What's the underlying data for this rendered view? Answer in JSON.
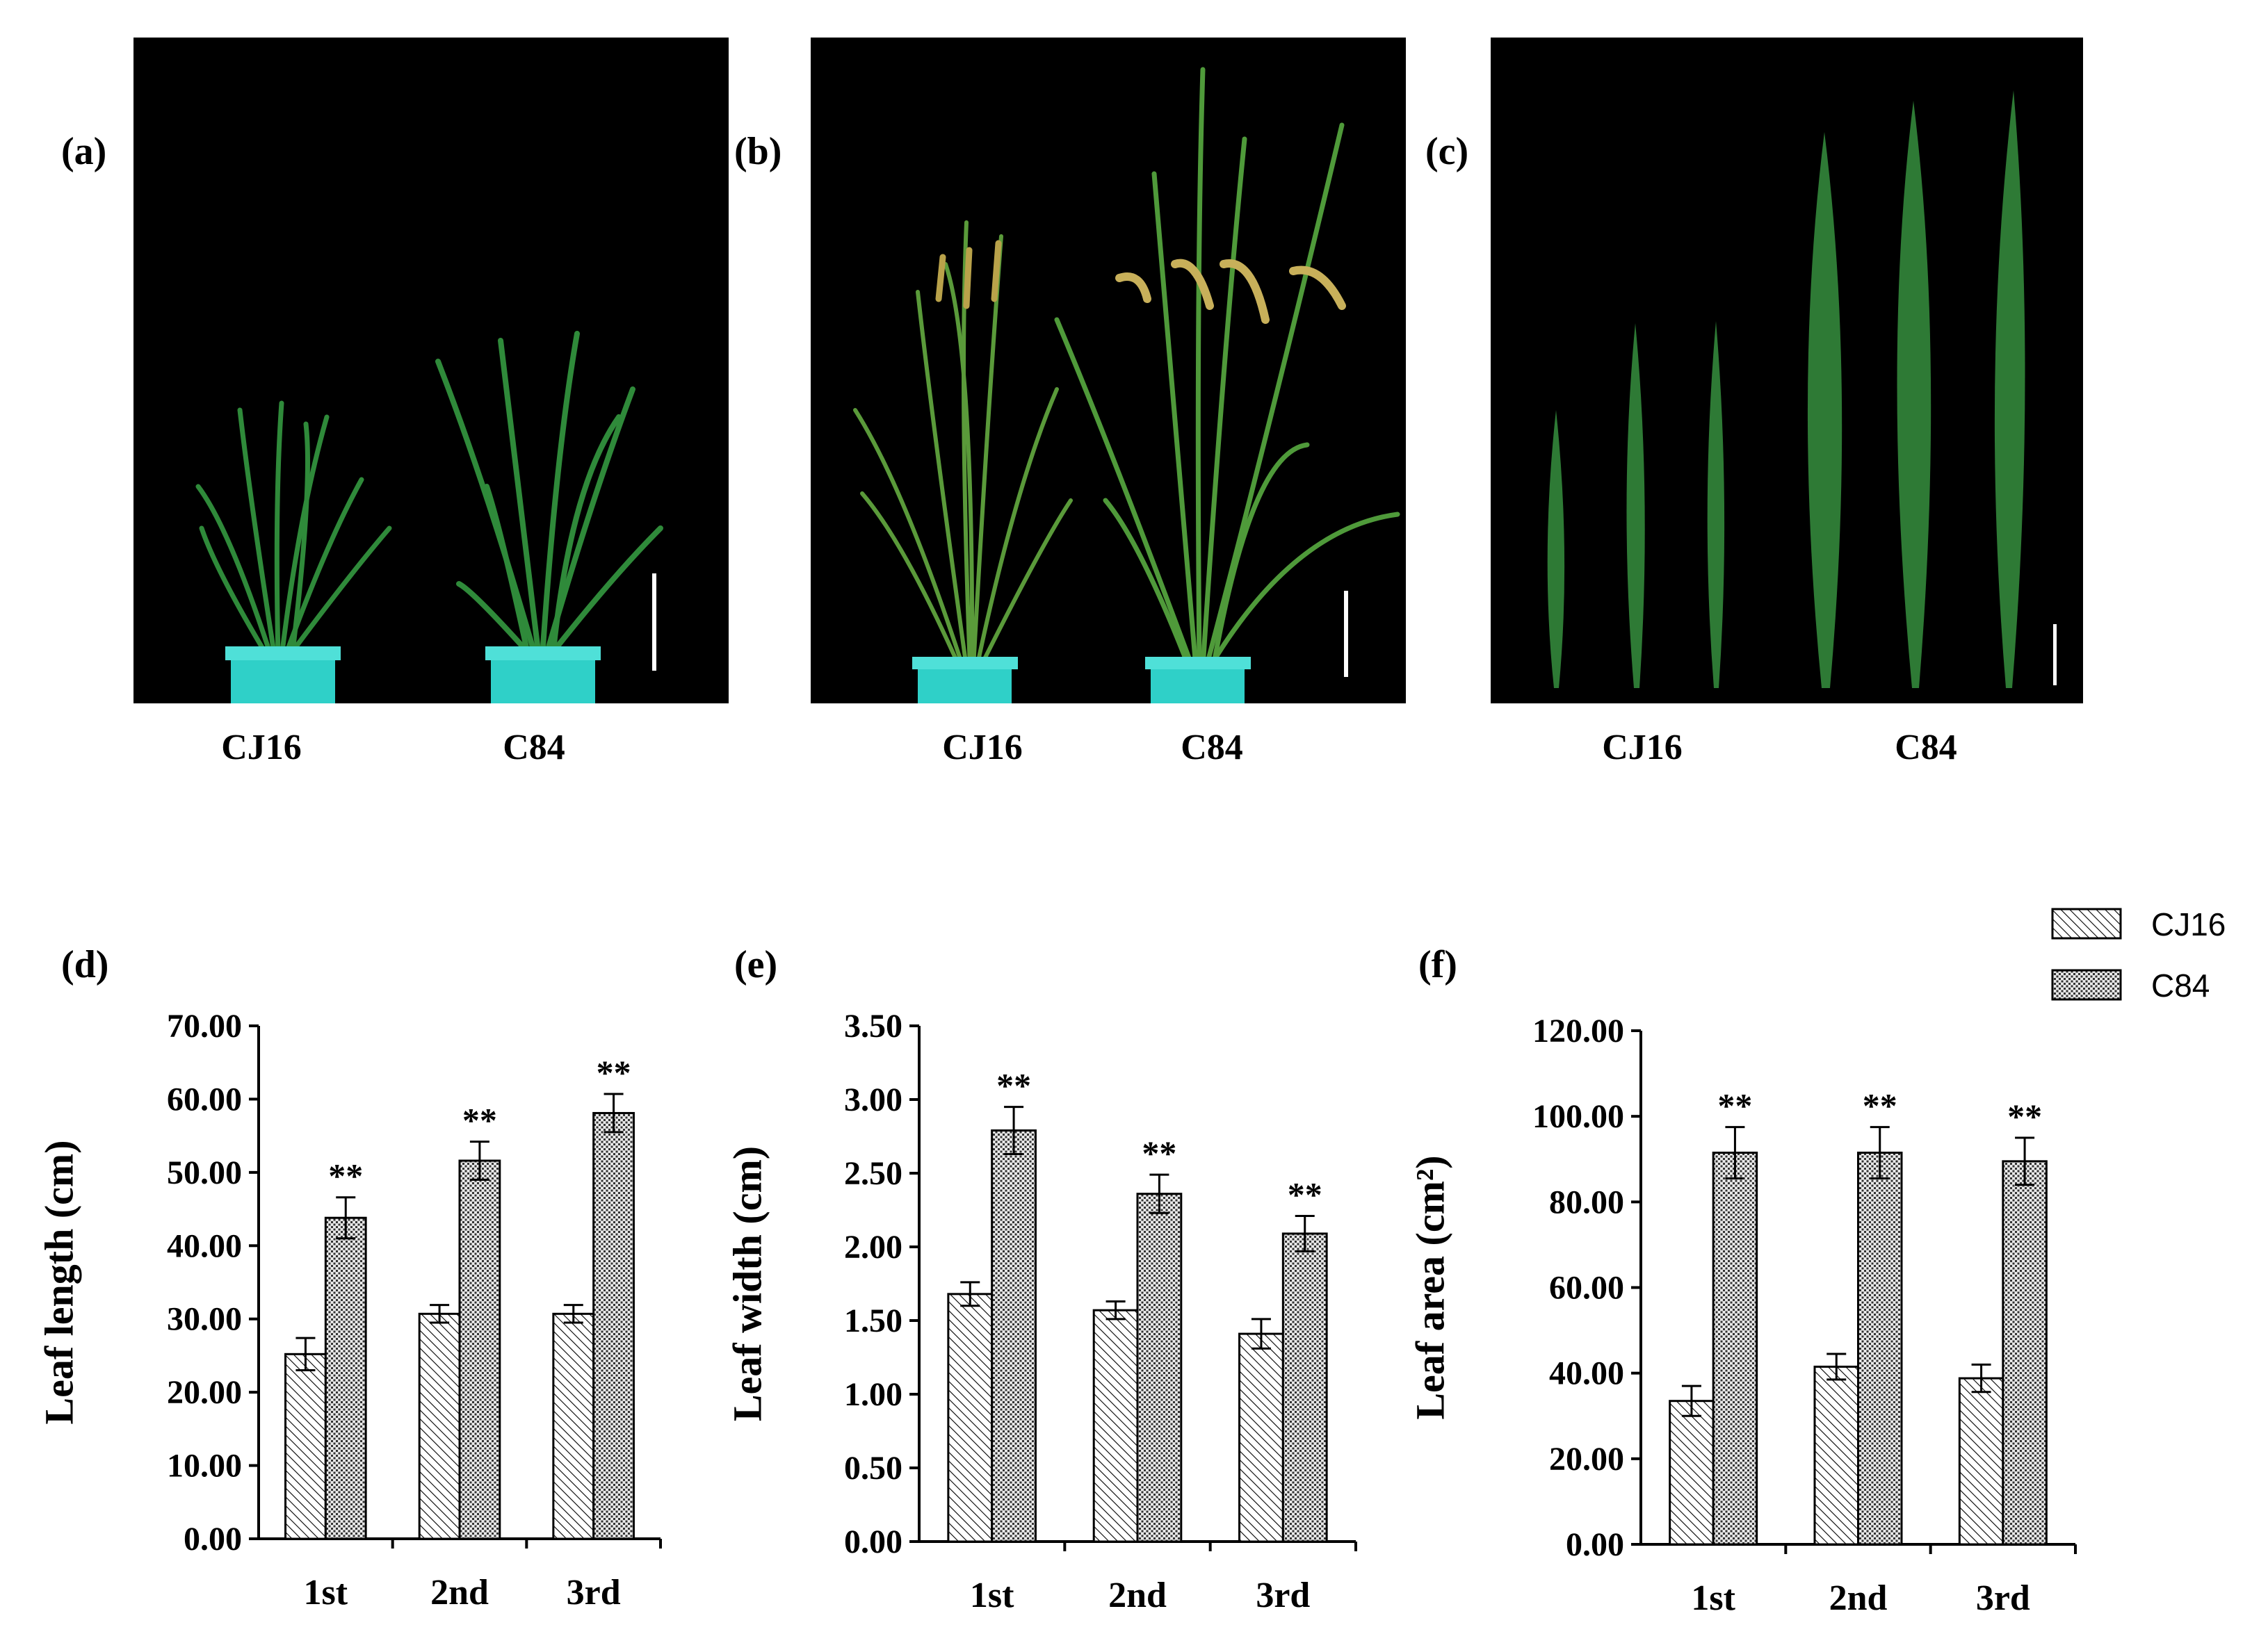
{
  "photos": [
    {
      "label": "(a)",
      "captions": [
        "CJ16",
        "C84"
      ],
      "subject": "seedling-stage plants"
    },
    {
      "label": "(b)",
      "captions": [
        "CJ16",
        "C84"
      ],
      "subject": "heading-stage plants"
    },
    {
      "label": "(c)",
      "captions": [
        "CJ16",
        "C84"
      ],
      "subject": "flag leaves"
    }
  ],
  "legend": {
    "items": [
      "CJ16",
      "C84"
    ]
  },
  "colors": {
    "photo_bg": "#000000",
    "pot": "#2fd0c8",
    "leaf_dark": "#1e6a2a",
    "leaf_light": "#4f9a3a",
    "panicle": "#b9a24a",
    "bar_fill": "#ffffff",
    "axis": "#000000"
  },
  "chart_data": [
    {
      "label": "(d)",
      "type": "bar",
      "ylabel": "Leaf length (cm)",
      "categories": [
        "1st",
        "2nd",
        "3rd"
      ],
      "ylim": [
        0,
        70
      ],
      "ytick_labels": [
        "0.00",
        "10.00",
        "20.00",
        "30.00",
        "40.00",
        "50.00",
        "60.00",
        "70.00"
      ],
      "series": [
        {
          "name": "CJ16",
          "values": [
            25.2,
            30.7,
            30.7
          ],
          "errors": [
            2.2,
            1.2,
            1.2
          ]
        },
        {
          "name": "C84",
          "values": [
            43.8,
            51.6,
            58.1
          ],
          "errors": [
            2.8,
            2.6,
            2.6
          ]
        }
      ],
      "significance": [
        "**",
        "**",
        "**"
      ]
    },
    {
      "label": "(e)",
      "type": "bar",
      "ylabel": "Leaf width (cm)",
      "categories": [
        "1st",
        "2nd",
        "3rd"
      ],
      "ylim": [
        0,
        3.5
      ],
      "ytick_labels": [
        "0.00",
        "0.50",
        "1.00",
        "1.50",
        "2.00",
        "2.50",
        "3.00",
        "3.50"
      ],
      "series": [
        {
          "name": "CJ16",
          "values": [
            1.68,
            1.57,
            1.41
          ],
          "errors": [
            0.08,
            0.06,
            0.1
          ]
        },
        {
          "name": "C84",
          "values": [
            2.79,
            2.36,
            2.09
          ],
          "errors": [
            0.16,
            0.13,
            0.12
          ]
        }
      ],
      "significance": [
        "**",
        "**",
        "**"
      ]
    },
    {
      "label": "(f)",
      "type": "bar",
      "ylabel": "Leaf area (cm²)",
      "categories": [
        "1st",
        "2nd",
        "3rd"
      ],
      "ylim": [
        0,
        120
      ],
      "ytick_labels": [
        "0.00",
        "20.00",
        "40.00",
        "60.00",
        "80.00",
        "100.00",
        "120.00"
      ],
      "series": [
        {
          "name": "CJ16",
          "values": [
            33.5,
            41.5,
            38.8
          ],
          "errors": [
            3.5,
            3.0,
            3.2
          ]
        },
        {
          "name": "C84",
          "values": [
            91.5,
            91.5,
            89.5
          ],
          "errors": [
            6.0,
            6.0,
            5.5
          ]
        }
      ],
      "significance": [
        "**",
        "**",
        "**"
      ]
    }
  ]
}
